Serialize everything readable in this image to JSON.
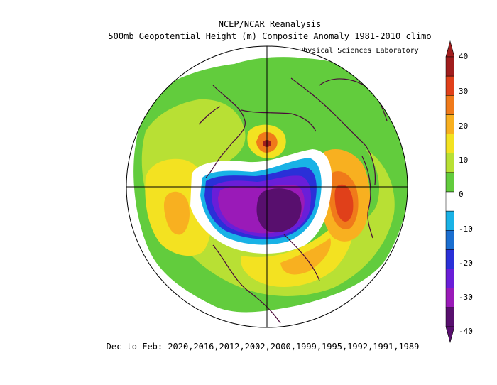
{
  "header": {
    "title_line1": "NCEP/NCAR Reanalysis",
    "title_line2": "500mb Geopotential Height (m) Composite Anomaly 1981-2010 climo",
    "credit": "NOAA Physical Sciences Laboratory"
  },
  "footer": {
    "seasons": "Dec to Feb: 2020,2016,2012,2002,2000,1999,1995,1992,1991,1989"
  },
  "colorbar": {
    "units": "m",
    "ticks": [
      "40",
      "30",
      "20",
      "10",
      "0",
      "-10",
      "-20",
      "-30",
      "-40"
    ],
    "colors": [
      "#a01d1d",
      "#e0401a",
      "#f07a1a",
      "#f8b020",
      "#f3e221",
      "#b8e034",
      "#62cc3d",
      "#ffffff",
      "#19b2e6",
      "#1a6ed0",
      "#2a30d8",
      "#6a1ed8",
      "#9a1ab8",
      "#580f6e"
    ]
  },
  "map_data": {
    "projection": "north-polar-stereographic",
    "variable": "500mb geopotential height anomaly",
    "features": [
      {
        "name": "arctic-negative-anomaly",
        "value_range": [
          -40,
          -20
        ]
      },
      {
        "name": "europe-positive-anomaly",
        "value_range": [
          30,
          40
        ]
      },
      {
        "name": "greenland-positive-anomaly",
        "value_range": [
          30,
          40
        ]
      },
      {
        "name": "pacific-positive-anomaly",
        "value_range": [
          20,
          30
        ]
      },
      {
        "name": "atlantic-positive-anomaly",
        "value_range": [
          20,
          30
        ]
      }
    ]
  }
}
